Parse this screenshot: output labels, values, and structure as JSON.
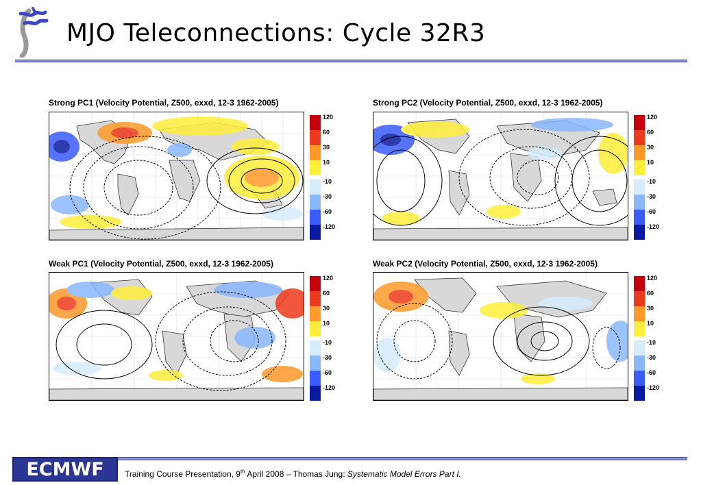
{
  "header": {
    "title": "MJO Teleconnections: Cycle 32R3",
    "logo_icon": "ecmwf-swirl-logo-icon"
  },
  "panels": [
    {
      "title": "Strong PC1 (Velocity Potential, Z500, exxd, 12-3 1962-2005)"
    },
    {
      "title": "Strong PC2 (Velocity Potential, Z500, exxd, 12-3 1962-2005)"
    },
    {
      "title": "Weak PC1 (Velocity Potential, Z500, exxd, 12-3 1962-2005)"
    },
    {
      "title": "Weak PC2 (Velocity Potential, Z500, exxd, 12-3 1962-2005)"
    }
  ],
  "colorbar": {
    "levels": [
      "120",
      "60",
      "30",
      "10",
      "-10",
      "-30",
      "-60",
      "-120"
    ],
    "colors": [
      "#c4000c",
      "#ee3a1c",
      "#ff9a2a",
      "#ffee3a",
      "#d6ecff",
      "#8ab8ff",
      "#3a5cff",
      "#0a1aa0"
    ]
  },
  "footer": {
    "logo_text": "ECMWF",
    "text_prefix": "Training Course Presentation, 9",
    "text_sup": "th",
    "text_mid": " April 2008 – Thomas Jung: ",
    "text_italic": "Systematic Model Errors Part I."
  }
}
